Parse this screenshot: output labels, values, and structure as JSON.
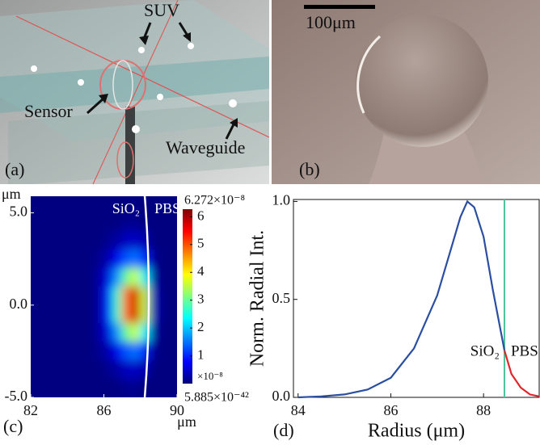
{
  "panel_a": {
    "label": "(a)",
    "annotations": [
      "SUV",
      "Sensor",
      "Waveguide"
    ]
  },
  "panel_b": {
    "label": "(b)",
    "scale_bar": "100μm"
  },
  "chart_data": [
    {
      "type": "heatmap",
      "label": "(c)",
      "x": [
        82.25,
        82.75,
        83.25,
        83.75,
        84.25,
        84.75,
        85.25,
        85.75,
        86.25,
        86.75,
        87.25,
        87.75,
        88.25,
        88.75,
        89.25,
        89.75
      ],
      "y": [
        4.5,
        3.5,
        2.5,
        1.5,
        0.5,
        -0.5,
        -1.5,
        -2.5,
        -3.5,
        -4.5
      ],
      "z": [
        [
          0,
          0,
          0,
          0,
          0,
          0,
          0,
          0,
          0,
          0,
          0.1,
          0.1,
          0,
          0,
          0,
          0
        ],
        [
          0,
          0,
          0,
          0,
          0,
          0,
          0,
          0,
          0.1,
          0.2,
          0.4,
          0.4,
          0.3,
          0,
          0,
          0
        ],
        [
          0,
          0,
          0,
          0,
          0,
          0,
          0,
          0.1,
          0.3,
          0.7,
          1.3,
          1.5,
          1.0,
          0.1,
          0,
          0
        ],
        [
          0,
          0,
          0,
          0,
          0,
          0,
          0,
          0.2,
          0.6,
          1.7,
          3.0,
          3.6,
          2.3,
          0.2,
          0,
          0
        ],
        [
          0,
          0,
          0,
          0,
          0,
          0,
          0,
          0.2,
          1.0,
          2.7,
          4.8,
          5.8,
          3.6,
          0.4,
          0,
          0
        ],
        [
          0,
          0,
          0,
          0,
          0,
          0,
          0,
          0.2,
          1.0,
          2.7,
          4.8,
          5.8,
          3.6,
          0.4,
          0,
          0
        ],
        [
          0,
          0,
          0,
          0,
          0,
          0,
          0,
          0.2,
          0.6,
          1.7,
          3.0,
          3.6,
          2.3,
          0.2,
          0,
          0
        ],
        [
          0,
          0,
          0,
          0,
          0,
          0,
          0,
          0.1,
          0.3,
          0.7,
          1.3,
          1.5,
          1.0,
          0.1,
          0,
          0
        ],
        [
          0,
          0,
          0,
          0,
          0,
          0,
          0,
          0,
          0.1,
          0.2,
          0.4,
          0.4,
          0.3,
          0,
          0,
          0
        ],
        [
          0,
          0,
          0,
          0,
          0,
          0,
          0,
          0,
          0,
          0,
          0.1,
          0.1,
          0,
          0,
          0,
          0
        ]
      ],
      "xlim": [
        82,
        90
      ],
      "ylim": [
        -5,
        5.9
      ],
      "xticks": [
        82,
        86,
        90
      ],
      "yticks": [
        {
          "value": 5,
          "label": "5.0"
        },
        {
          "value": 0,
          "label": "0.0"
        },
        {
          "value": -5,
          "label": "-5.0"
        }
      ],
      "x_unit": "μm",
      "y_unit": "μm",
      "interface_x": 88.5,
      "region_labels": [
        "SiO₂",
        "PBS"
      ],
      "colorbar": {
        "lim": [
          0,
          6.272
        ],
        "ticks": [
          1,
          2,
          3,
          4,
          5,
          6
        ],
        "max_label": "6.272×10⁻⁸",
        "min_label": "5.885×10⁻⁴²",
        "unit_label": "×10⁻⁸",
        "colormap": "jet"
      }
    },
    {
      "type": "line",
      "label": "(d)",
      "xlabel": "Radius (μm)",
      "ylabel": "Norm. Radial Int.",
      "xlim": [
        83.9,
        89.2
      ],
      "ylim": [
        0,
        1.01
      ],
      "xticks": [
        84,
        86,
        88
      ],
      "yticks": [
        {
          "value": 0,
          "label": "0.0"
        },
        {
          "value": 0.5,
          "label": "0.5"
        },
        {
          "value": 1,
          "label": "1.0"
        }
      ],
      "interface_x": 88.45,
      "interface_color": "#4cc49a",
      "region_labels": [
        "SiO₂",
        "PBS"
      ],
      "series": [
        {
          "color": "#2b4ea2",
          "x": [
            84,
            84.5,
            85,
            85.5,
            86,
            86.5,
            87,
            87.25,
            87.5,
            87.65,
            87.8,
            88,
            88.2,
            88.45
          ],
          "values": [
            0,
            0.005,
            0.015,
            0.04,
            0.1,
            0.25,
            0.52,
            0.72,
            0.92,
            1.0,
            0.97,
            0.82,
            0.55,
            0.24
          ]
        },
        {
          "color": "#e0262a",
          "x": [
            88.45,
            88.6,
            88.8,
            89,
            89.2
          ],
          "values": [
            0.24,
            0.12,
            0.05,
            0.015,
            0.005
          ]
        }
      ]
    }
  ]
}
